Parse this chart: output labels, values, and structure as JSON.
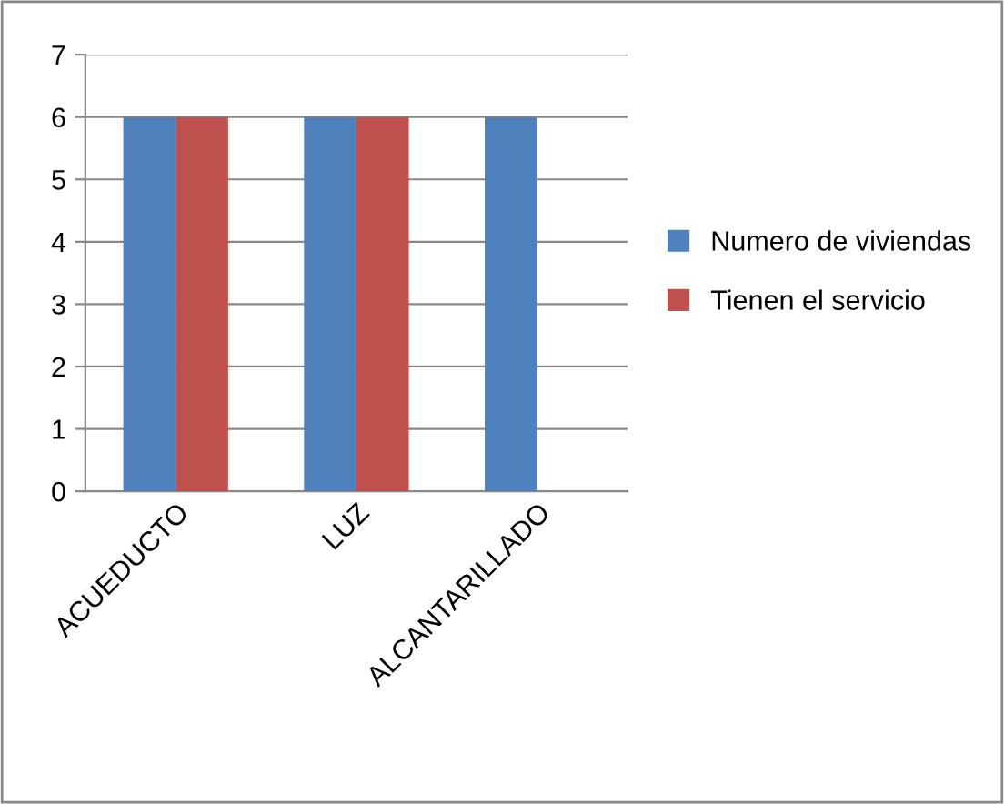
{
  "chart_data": {
    "type": "bar",
    "categories": [
      "ACUEDUCTO",
      "LUZ",
      "ALCANTARILLADO"
    ],
    "series": [
      {
        "name": "Numero de viviendas",
        "color": "#4f81bd",
        "values": [
          6,
          6,
          6
        ]
      },
      {
        "name": "Tienen el servicio",
        "color": "#c0504d",
        "values": [
          6,
          6,
          null
        ]
      }
    ],
    "ylim": [
      0,
      7
    ],
    "yticks": [
      0,
      1,
      2,
      3,
      4,
      5,
      6,
      7
    ],
    "grid": "y",
    "legend": "right"
  }
}
